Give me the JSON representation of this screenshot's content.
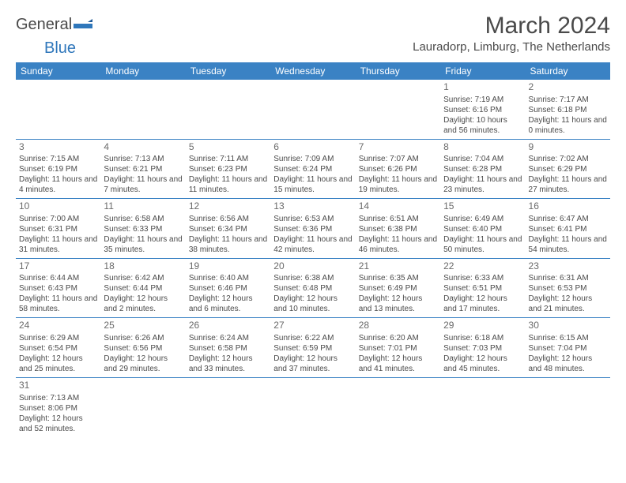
{
  "logo": {
    "word1": "General",
    "word2": "Blue"
  },
  "title": "March 2024",
  "location": "Lauradorp, Limburg, The Netherlands",
  "colors": {
    "header_bg": "#3a82c4",
    "header_text": "#ffffff",
    "border": "#3a82c4",
    "text": "#4a4a4a",
    "logo_accent": "#2f77bb"
  },
  "daysOfWeek": [
    "Sunday",
    "Monday",
    "Tuesday",
    "Wednesday",
    "Thursday",
    "Friday",
    "Saturday"
  ],
  "weeks": [
    [
      null,
      null,
      null,
      null,
      null,
      {
        "n": "1",
        "sr": "Sunrise: 7:19 AM",
        "ss": "Sunset: 6:16 PM",
        "dl": "Daylight: 10 hours and 56 minutes."
      },
      {
        "n": "2",
        "sr": "Sunrise: 7:17 AM",
        "ss": "Sunset: 6:18 PM",
        "dl": "Daylight: 11 hours and 0 minutes."
      }
    ],
    [
      {
        "n": "3",
        "sr": "Sunrise: 7:15 AM",
        "ss": "Sunset: 6:19 PM",
        "dl": "Daylight: 11 hours and 4 minutes."
      },
      {
        "n": "4",
        "sr": "Sunrise: 7:13 AM",
        "ss": "Sunset: 6:21 PM",
        "dl": "Daylight: 11 hours and 7 minutes."
      },
      {
        "n": "5",
        "sr": "Sunrise: 7:11 AM",
        "ss": "Sunset: 6:23 PM",
        "dl": "Daylight: 11 hours and 11 minutes."
      },
      {
        "n": "6",
        "sr": "Sunrise: 7:09 AM",
        "ss": "Sunset: 6:24 PM",
        "dl": "Daylight: 11 hours and 15 minutes."
      },
      {
        "n": "7",
        "sr": "Sunrise: 7:07 AM",
        "ss": "Sunset: 6:26 PM",
        "dl": "Daylight: 11 hours and 19 minutes."
      },
      {
        "n": "8",
        "sr": "Sunrise: 7:04 AM",
        "ss": "Sunset: 6:28 PM",
        "dl": "Daylight: 11 hours and 23 minutes."
      },
      {
        "n": "9",
        "sr": "Sunrise: 7:02 AM",
        "ss": "Sunset: 6:29 PM",
        "dl": "Daylight: 11 hours and 27 minutes."
      }
    ],
    [
      {
        "n": "10",
        "sr": "Sunrise: 7:00 AM",
        "ss": "Sunset: 6:31 PM",
        "dl": "Daylight: 11 hours and 31 minutes."
      },
      {
        "n": "11",
        "sr": "Sunrise: 6:58 AM",
        "ss": "Sunset: 6:33 PM",
        "dl": "Daylight: 11 hours and 35 minutes."
      },
      {
        "n": "12",
        "sr": "Sunrise: 6:56 AM",
        "ss": "Sunset: 6:34 PM",
        "dl": "Daylight: 11 hours and 38 minutes."
      },
      {
        "n": "13",
        "sr": "Sunrise: 6:53 AM",
        "ss": "Sunset: 6:36 PM",
        "dl": "Daylight: 11 hours and 42 minutes."
      },
      {
        "n": "14",
        "sr": "Sunrise: 6:51 AM",
        "ss": "Sunset: 6:38 PM",
        "dl": "Daylight: 11 hours and 46 minutes."
      },
      {
        "n": "15",
        "sr": "Sunrise: 6:49 AM",
        "ss": "Sunset: 6:40 PM",
        "dl": "Daylight: 11 hours and 50 minutes."
      },
      {
        "n": "16",
        "sr": "Sunrise: 6:47 AM",
        "ss": "Sunset: 6:41 PM",
        "dl": "Daylight: 11 hours and 54 minutes."
      }
    ],
    [
      {
        "n": "17",
        "sr": "Sunrise: 6:44 AM",
        "ss": "Sunset: 6:43 PM",
        "dl": "Daylight: 11 hours and 58 minutes."
      },
      {
        "n": "18",
        "sr": "Sunrise: 6:42 AM",
        "ss": "Sunset: 6:44 PM",
        "dl": "Daylight: 12 hours and 2 minutes."
      },
      {
        "n": "19",
        "sr": "Sunrise: 6:40 AM",
        "ss": "Sunset: 6:46 PM",
        "dl": "Daylight: 12 hours and 6 minutes."
      },
      {
        "n": "20",
        "sr": "Sunrise: 6:38 AM",
        "ss": "Sunset: 6:48 PM",
        "dl": "Daylight: 12 hours and 10 minutes."
      },
      {
        "n": "21",
        "sr": "Sunrise: 6:35 AM",
        "ss": "Sunset: 6:49 PM",
        "dl": "Daylight: 12 hours and 13 minutes."
      },
      {
        "n": "22",
        "sr": "Sunrise: 6:33 AM",
        "ss": "Sunset: 6:51 PM",
        "dl": "Daylight: 12 hours and 17 minutes."
      },
      {
        "n": "23",
        "sr": "Sunrise: 6:31 AM",
        "ss": "Sunset: 6:53 PM",
        "dl": "Daylight: 12 hours and 21 minutes."
      }
    ],
    [
      {
        "n": "24",
        "sr": "Sunrise: 6:29 AM",
        "ss": "Sunset: 6:54 PM",
        "dl": "Daylight: 12 hours and 25 minutes."
      },
      {
        "n": "25",
        "sr": "Sunrise: 6:26 AM",
        "ss": "Sunset: 6:56 PM",
        "dl": "Daylight: 12 hours and 29 minutes."
      },
      {
        "n": "26",
        "sr": "Sunrise: 6:24 AM",
        "ss": "Sunset: 6:58 PM",
        "dl": "Daylight: 12 hours and 33 minutes."
      },
      {
        "n": "27",
        "sr": "Sunrise: 6:22 AM",
        "ss": "Sunset: 6:59 PM",
        "dl": "Daylight: 12 hours and 37 minutes."
      },
      {
        "n": "28",
        "sr": "Sunrise: 6:20 AM",
        "ss": "Sunset: 7:01 PM",
        "dl": "Daylight: 12 hours and 41 minutes."
      },
      {
        "n": "29",
        "sr": "Sunrise: 6:18 AM",
        "ss": "Sunset: 7:03 PM",
        "dl": "Daylight: 12 hours and 45 minutes."
      },
      {
        "n": "30",
        "sr": "Sunrise: 6:15 AM",
        "ss": "Sunset: 7:04 PM",
        "dl": "Daylight: 12 hours and 48 minutes."
      }
    ],
    [
      {
        "n": "31",
        "sr": "Sunrise: 7:13 AM",
        "ss": "Sunset: 8:06 PM",
        "dl": "Daylight: 12 hours and 52 minutes."
      },
      null,
      null,
      null,
      null,
      null,
      null
    ]
  ]
}
